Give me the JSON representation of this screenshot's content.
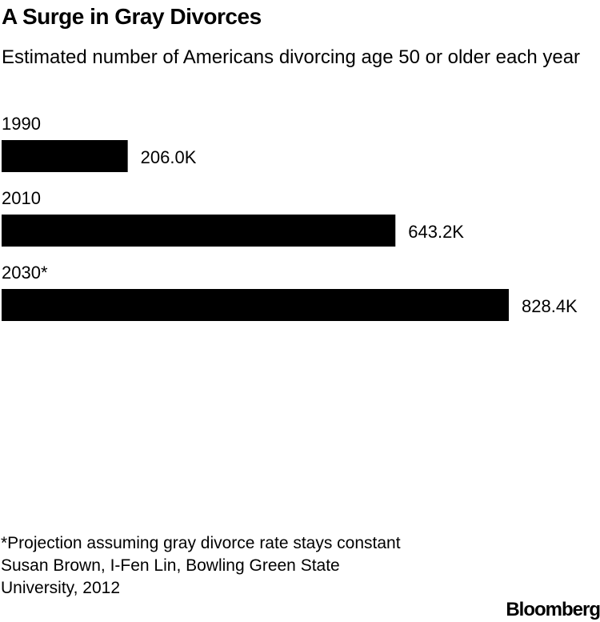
{
  "chart_data": {
    "type": "bar",
    "orientation": "horizontal",
    "title": "A Surge in Gray Divorces",
    "subtitle": "Estimated number of Americans divorcing age 50 or older each year",
    "categories": [
      "1990",
      "2010",
      "2030*"
    ],
    "values": [
      206.0,
      643.2,
      828.4
    ],
    "value_labels": [
      "206.0K",
      "643.2K",
      "828.4K"
    ],
    "unit": "K",
    "xlim": [
      0,
      828.4
    ],
    "grid": false,
    "legend": "none",
    "bar_color": "#000000"
  },
  "footnote": {
    "note": "*Projection assuming gray divorce rate stays constant",
    "source": "Susan Brown, I-Fen Lin, Bowling Green State University, 2012"
  },
  "brand": "Bloomberg"
}
